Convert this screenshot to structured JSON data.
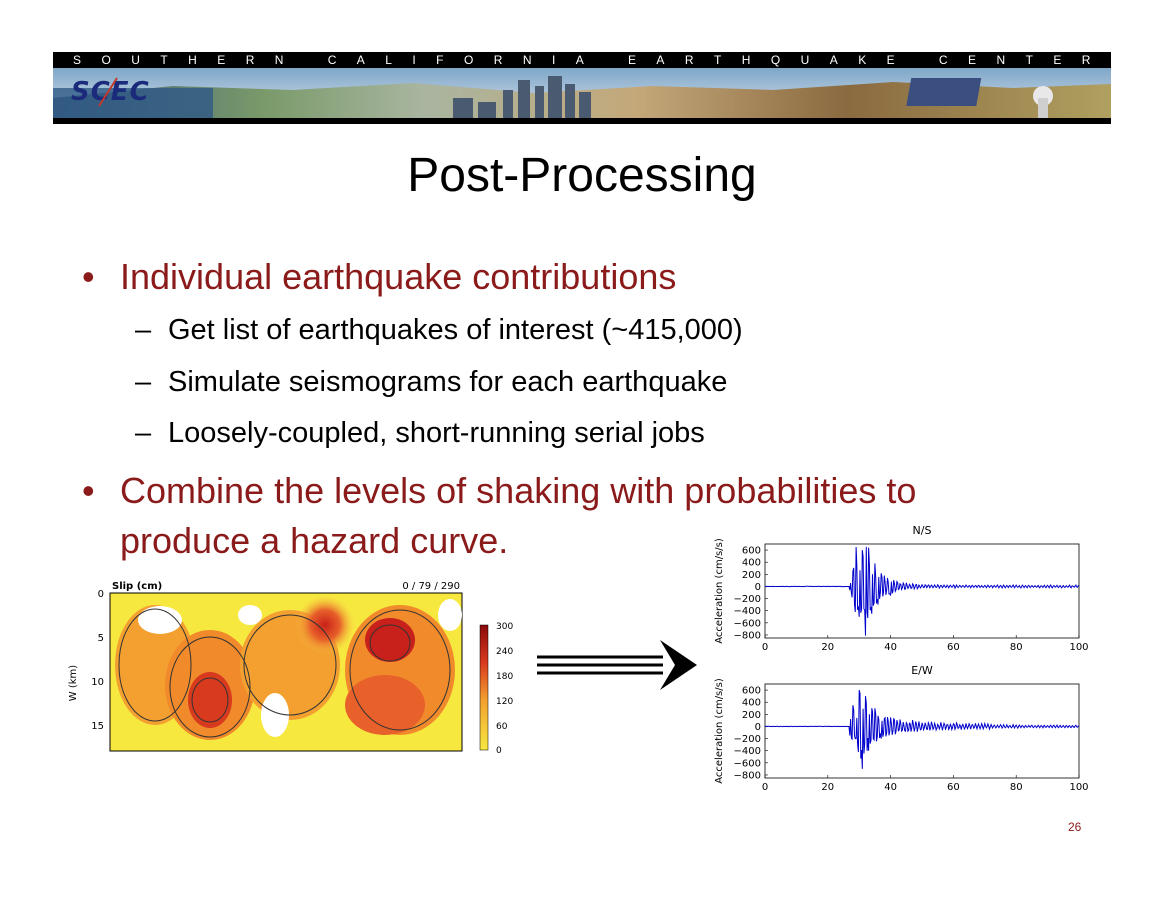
{
  "banner": {
    "words": [
      "SOUTHERN",
      "CALIFORNIA",
      "EARTHQUAKE",
      "CENTER"
    ],
    "logo": "SCEC"
  },
  "slide": {
    "title": "Post-Processing",
    "bullet1": "Individual earthquake contributions",
    "sub1": "Get list of earthquakes of interest (~415,000)",
    "sub2": "Simulate seismograms for each earthquake",
    "sub3": "Loosely-coupled, short-running serial jobs",
    "bullet2_line1": "Combine the levels of shaking with probabilities to",
    "bullet2_line2": "produce a hazard curve.",
    "bullet_glyph": "•",
    "dash_glyph": "–",
    "page_number": "26"
  },
  "slip_map": {
    "title": "Slip (cm)",
    "corner_label": "0 / 79 / 290",
    "ylabel": "W (km)",
    "yticks": [
      "0",
      "5",
      "10",
      "15"
    ],
    "colorbar_ticks": [
      "300",
      "240",
      "180",
      "120",
      "60",
      "0"
    ],
    "colors": {
      "low": "#f7e840",
      "mid": "#f08a2a",
      "high": "#c8201a"
    }
  },
  "chart_data": [
    {
      "type": "line",
      "title": "N/S",
      "ylabel": "Acceleration (cm/s/s)",
      "xlabel": "",
      "xlim": [
        0,
        100
      ],
      "ylim": [
        -850,
        700
      ],
      "xticks": [
        "0",
        "20",
        "40",
        "60",
        "80",
        "100"
      ],
      "yticks": [
        "600",
        "400",
        "200",
        "0",
        "−200",
        "−400",
        "−600",
        "−800"
      ],
      "series": [
        {
          "color": "#0000cc",
          "peaks": [
            [
              27,
              -60
            ],
            [
              28,
              250
            ],
            [
              29,
              650
            ],
            [
              30,
              -500
            ],
            [
              31,
              600
            ],
            [
              32,
              -810
            ],
            [
              33,
              640
            ],
            [
              34,
              -450
            ],
            [
              35,
              380
            ],
            [
              36,
              -300
            ],
            [
              38,
              180
            ],
            [
              40,
              -150
            ],
            [
              42,
              80
            ],
            [
              50,
              30
            ],
            [
              100,
              0
            ]
          ]
        }
      ]
    },
    {
      "type": "line",
      "title": "E/W",
      "ylabel": "Acceleration (cm/s/s)",
      "xlabel": "",
      "xlim": [
        0,
        100
      ],
      "ylim": [
        -850,
        700
      ],
      "xticks": [
        "0",
        "20",
        "40",
        "60",
        "80",
        "100"
      ],
      "yticks": [
        "600",
        "400",
        "200",
        "0",
        "−200",
        "−400",
        "−600",
        "−800"
      ],
      "series": [
        {
          "color": "#0000cc",
          "peaks": [
            [
              27,
              -150
            ],
            [
              28,
              350
            ],
            [
              29,
              -200
            ],
            [
              30,
              600
            ],
            [
              31,
              -700
            ],
            [
              32,
              500
            ],
            [
              33,
              -400
            ],
            [
              35,
              300
            ],
            [
              37,
              -200
            ],
            [
              40,
              150
            ],
            [
              45,
              100
            ],
            [
              55,
              60
            ],
            [
              70,
              40
            ],
            [
              100,
              0
            ]
          ]
        }
      ]
    }
  ]
}
